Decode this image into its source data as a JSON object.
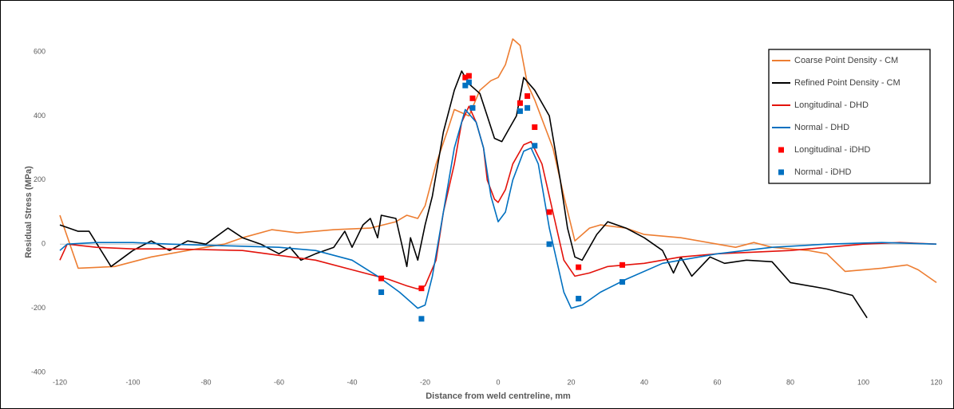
{
  "chart_data": {
    "type": "line",
    "x_label": "Distance from weld centreline, mm",
    "y_label": "Residual Stress (MPa)",
    "xlim": [
      -120,
      120
    ],
    "xticks": [
      -120,
      -100,
      -80,
      -60,
      -40,
      -20,
      0,
      20,
      40,
      60,
      80,
      100,
      120
    ],
    "ylim": [
      -400,
      600
    ],
    "yticks": [
      -400,
      -200,
      0,
      200,
      400,
      600
    ],
    "legend": "upper right",
    "series": [
      {
        "name": "Coarse Point Density - CM",
        "type": "line",
        "color": "#ed7d31",
        "x": [
          -120,
          -115,
          -105,
          -95,
          -85,
          -80,
          -75,
          -70,
          -62,
          -55,
          -45,
          -35,
          -28,
          -25,
          -22,
          -20,
          -17,
          -14,
          -12,
          -8,
          -5,
          -2,
          0,
          2,
          4,
          6,
          8,
          10,
          15,
          18,
          21,
          25,
          28,
          35,
          40,
          50,
          60,
          65,
          70,
          75,
          85,
          90,
          95,
          100,
          105,
          112,
          115,
          120
        ],
        "values": [
          90,
          -75,
          -70,
          -40,
          -20,
          -10,
          0,
          20,
          45,
          35,
          45,
          50,
          70,
          90,
          80,
          120,
          250,
          350,
          420,
          400,
          480,
          510,
          520,
          560,
          640,
          620,
          500,
          450,
          300,
          150,
          10,
          50,
          60,
          50,
          30,
          20,
          0,
          -10,
          5,
          -10,
          -20,
          -30,
          -85,
          -80,
          -75,
          -65,
          -80,
          -120
        ]
      },
      {
        "name": "Refined Point Density - CM",
        "type": "line",
        "color": "#000000",
        "x": [
          -120,
          -115,
          -112,
          -106,
          -100,
          -95,
          -90,
          -85,
          -80,
          -74,
          -70,
          -65,
          -60,
          -57,
          -54,
          -50,
          -45,
          -42,
          -40,
          -37,
          -35,
          -33,
          -32,
          -28,
          -25,
          -24,
          -22,
          -20,
          -18,
          -15,
          -12,
          -10,
          -8,
          -5,
          -3,
          -1,
          1,
          3,
          5,
          7,
          10,
          14,
          17,
          19,
          21,
          23,
          27,
          30,
          35,
          40,
          45,
          48,
          50,
          53,
          58,
          62,
          68,
          75,
          80,
          90,
          97,
          101
        ],
        "values": [
          60,
          40,
          40,
          -70,
          -20,
          10,
          -20,
          10,
          0,
          50,
          20,
          0,
          -30,
          -10,
          -50,
          -30,
          -10,
          40,
          -10,
          60,
          80,
          20,
          90,
          80,
          -70,
          20,
          -50,
          60,
          150,
          350,
          480,
          540,
          500,
          470,
          400,
          330,
          320,
          360,
          400,
          520,
          480,
          400,
          200,
          50,
          -40,
          -50,
          30,
          70,
          50,
          20,
          -20,
          -90,
          -40,
          -100,
          -40,
          -60,
          -50,
          -55,
          -120,
          -140,
          -160,
          -230
        ]
      },
      {
        "name": "Longitudinal - DHD",
        "type": "line",
        "color": "#e3120b",
        "x": [
          -120,
          -118,
          -110,
          -100,
          -90,
          -70,
          -60,
          -50,
          -40,
          -30,
          -25,
          -22,
          -20,
          -17,
          -15,
          -12,
          -10,
          -8,
          -6,
          -4,
          -3,
          -1,
          0,
          2,
          4,
          7,
          9,
          12,
          15,
          18,
          21,
          25,
          30,
          40,
          50,
          60,
          80,
          100,
          110,
          120
        ],
        "values": [
          -50,
          0,
          -10,
          -15,
          -15,
          -20,
          -35,
          -50,
          -80,
          -110,
          -130,
          -140,
          -130,
          -50,
          100,
          250,
          380,
          430,
          380,
          300,
          200,
          140,
          130,
          170,
          250,
          310,
          320,
          250,
          100,
          -50,
          -100,
          -90,
          -70,
          -60,
          -40,
          -30,
          -20,
          0,
          5,
          0
        ]
      },
      {
        "name": "Normal - DHD",
        "type": "line",
        "color": "#0070c0",
        "x": [
          -120,
          -118,
          -110,
          -100,
          -90,
          -75,
          -60,
          -50,
          -40,
          -33,
          -27,
          -22,
          -20,
          -18,
          -15,
          -12,
          -9,
          -6,
          -4,
          -2,
          0,
          2,
          4,
          7,
          9,
          11,
          14,
          18,
          20,
          23,
          28,
          35,
          45,
          60,
          75,
          90,
          105,
          120
        ],
        "values": [
          -20,
          0,
          5,
          5,
          0,
          -5,
          -10,
          -20,
          -50,
          -100,
          -150,
          -200,
          -190,
          -100,
          100,
          300,
          420,
          380,
          300,
          150,
          70,
          100,
          200,
          290,
          300,
          250,
          50,
          -150,
          -200,
          -190,
          -150,
          -110,
          -60,
          -30,
          -10,
          0,
          5,
          0
        ]
      },
      {
        "name": "Longitudinal - iDHD",
        "type": "scatter",
        "color": "#ff0000",
        "x": [
          -32,
          -21,
          -9,
          -8,
          -7,
          6,
          8,
          10,
          14,
          22,
          34
        ],
        "values": [
          -107,
          -138,
          520,
          525,
          455,
          440,
          462,
          365,
          100,
          -72,
          -65
        ]
      },
      {
        "name": "Normal - iDHD",
        "type": "scatter",
        "color": "#0070c0",
        "x": [
          -32,
          -21,
          -9,
          -8,
          -7,
          6,
          8,
          10,
          14,
          22,
          34
        ],
        "values": [
          -150,
          -233,
          495,
          505,
          425,
          415,
          425,
          307,
          0,
          -170,
          -118
        ]
      }
    ]
  }
}
